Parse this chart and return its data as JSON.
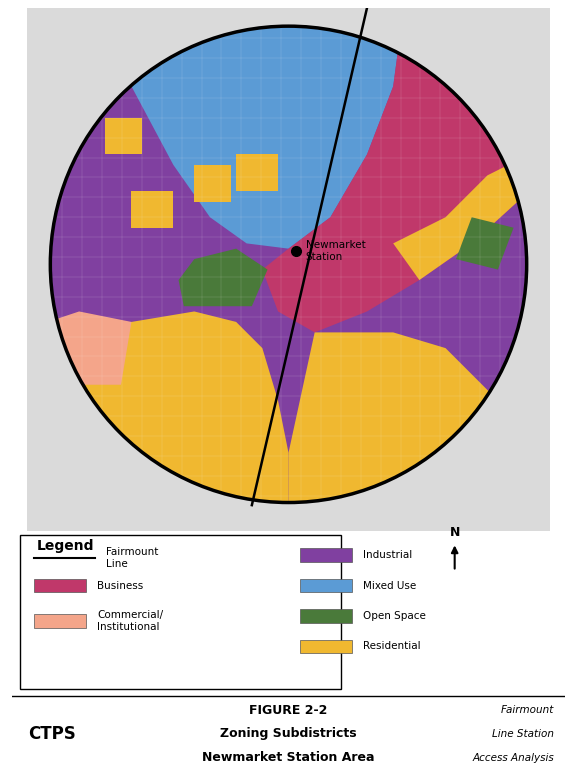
{
  "title_line1": "FIGURE 2-2",
  "title_line2": "Zoning Subdistricts",
  "title_line3": "Newmarket Station Area",
  "ctps_label": "CTPS",
  "subtitle_right_line1": "Fairmount",
  "subtitle_right_line2": "Line Station",
  "subtitle_right_line3": "Access Analysis",
  "legend_title": "Legend",
  "background_color": "#FFFFFF",
  "circle_color": "#000000",
  "circle_linewidth": 2.5,
  "station_dot_color": "#000000",
  "station_label": "Newmarket\nStation",
  "fairmount_line_color": "#000000",
  "zone_colors": {
    "industrial": "#8040A0",
    "mixed_use": "#5B9BD5",
    "business": "#C0386A",
    "commercial": "#F4A58A",
    "open_space": "#4A7A3A",
    "residential": "#F0B830"
  },
  "legend_items_left": [
    {
      "label": "Fairmount\nLine",
      "color": null,
      "type": "line"
    },
    {
      "label": "Business",
      "color": "#C0386A",
      "type": "rect"
    },
    {
      "label": "Commercial/\nInstitutional",
      "color": "#F4A58A",
      "type": "rect"
    }
  ],
  "legend_items_right": [
    {
      "label": "Industrial",
      "color": "#8040A0",
      "type": "rect"
    },
    {
      "label": "Mixed Use",
      "color": "#5B9BD5",
      "type": "rect"
    },
    {
      "label": "Open Space",
      "color": "#4A7A3A",
      "type": "rect"
    },
    {
      "label": "Residential",
      "color": "#F0B830",
      "type": "rect"
    }
  ]
}
